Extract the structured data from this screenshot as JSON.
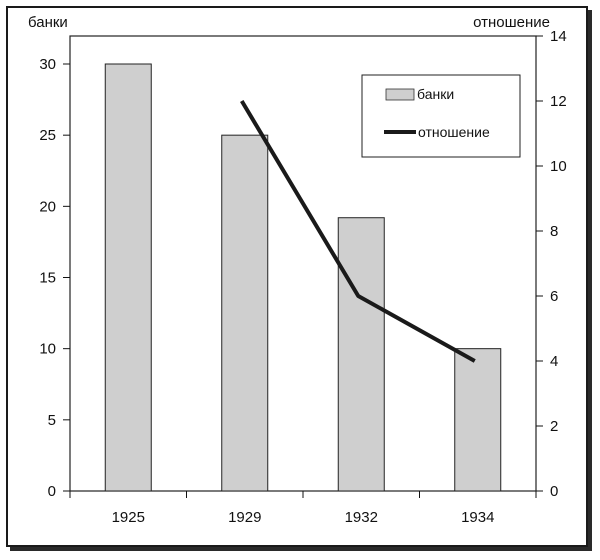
{
  "chart_data": {
    "type": "bar",
    "categories": [
      "1925",
      "1929",
      "1932",
      "1934"
    ],
    "series": [
      {
        "name": "банки",
        "type": "bar",
        "axis": "left",
        "values": [
          30,
          25,
          19.2,
          10
        ]
      },
      {
        "name": "отношение",
        "type": "line",
        "axis": "right",
        "values": [
          null,
          12,
          6,
          4
        ]
      }
    ],
    "y_left": {
      "label": "банки",
      "lim": [
        0,
        30
      ],
      "ticks": [
        "0",
        "5",
        "10",
        "15",
        "20",
        "25",
        "30"
      ]
    },
    "y_right": {
      "label": "отношение",
      "lim": [
        0,
        14
      ],
      "ticks": [
        "0",
        "2",
        "4",
        "6",
        "8",
        "10",
        "12",
        "14"
      ]
    },
    "legend": {
      "position": "top-right",
      "entries": [
        "банки",
        "отношение"
      ]
    },
    "grid": false,
    "colors": {
      "bar_fill": "#cfcfcf",
      "bar_stroke": "#222222",
      "line": "#1a1a1a",
      "axis": "#111111"
    }
  }
}
